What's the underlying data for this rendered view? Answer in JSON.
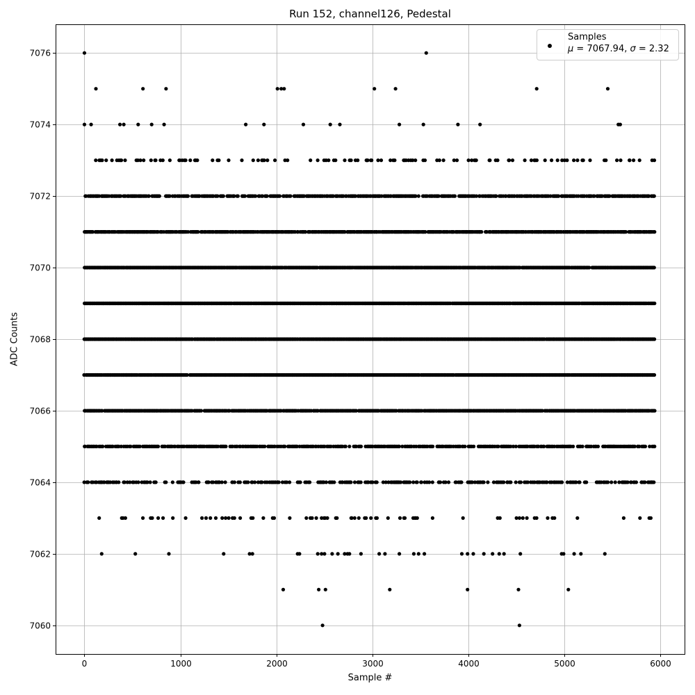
{
  "chart_data": {
    "type": "scatter",
    "title": "Run 152, channel126, Pedestal",
    "xlabel": "Sample #",
    "ylabel": "ADC Counts",
    "xlim": [
      -300,
      6250
    ],
    "ylim": [
      7059.2,
      7076.8
    ],
    "x_ticks": [
      0,
      1000,
      2000,
      3000,
      4000,
      5000,
      6000
    ],
    "y_ticks": [
      7060,
      7062,
      7064,
      7066,
      7068,
      7070,
      7072,
      7074,
      7076
    ],
    "grid": true,
    "legend": {
      "placement": "top-right",
      "label": "Samples",
      "mu_symbol": "μ",
      "sigma_symbol": "σ",
      "mu": "7067.94",
      "sigma": "2.32"
    },
    "series": [
      {
        "marker": "circle",
        "color": "#000000",
        "points": [
          [
            0,
            7076
          ],
          [
            120,
            7075
          ],
          [
            610,
            7075
          ],
          [
            850,
            7075
          ],
          [
            2010,
            7075
          ],
          [
            2050,
            7075
          ],
          [
            2080,
            7075
          ],
          [
            3020,
            7075
          ],
          [
            3240,
            7075
          ],
          [
            4710,
            7075
          ],
          [
            5450,
            7075
          ],
          [
            3560,
            7076
          ],
          [
            2480,
            7060
          ],
          [
            4530,
            7060
          ],
          [
            2070,
            7061
          ],
          [
            2440,
            7061
          ],
          [
            2510,
            7061
          ],
          [
            3180,
            7061
          ],
          [
            3990,
            7061
          ],
          [
            4520,
            7061
          ],
          [
            5040,
            7061
          ],
          [
            0,
            7074
          ],
          [
            70,
            7074
          ],
          [
            370,
            7074
          ],
          [
            410,
            7074
          ],
          [
            560,
            7074
          ],
          [
            700,
            7074
          ],
          [
            830,
            7074
          ],
          [
            1680,
            7074
          ],
          [
            1870,
            7074
          ],
          [
            2280,
            7074
          ],
          [
            2560,
            7074
          ],
          [
            2660,
            7074
          ],
          [
            3280,
            7074
          ],
          [
            3530,
            7074
          ],
          [
            3890,
            7074
          ],
          [
            4120,
            7074
          ],
          [
            5560,
            7074
          ],
          [
            5580,
            7074
          ],
          [
            180,
            7062
          ],
          [
            530,
            7062
          ],
          [
            880,
            7062
          ],
          [
            1450,
            7062
          ],
          [
            1720,
            7062
          ],
          [
            1750,
            7062
          ],
          [
            2220,
            7062
          ],
          [
            2240,
            7062
          ],
          [
            2430,
            7062
          ],
          [
            2470,
            7062
          ],
          [
            2500,
            7062
          ],
          [
            2580,
            7062
          ],
          [
            2640,
            7062
          ],
          [
            2710,
            7062
          ],
          [
            2740,
            7062
          ],
          [
            2760,
            7062
          ],
          [
            2880,
            7062
          ],
          [
            3070,
            7062
          ],
          [
            3130,
            7062
          ],
          [
            3280,
            7062
          ],
          [
            3430,
            7062
          ],
          [
            3480,
            7062
          ],
          [
            3540,
            7062
          ],
          [
            3930,
            7062
          ],
          [
            3990,
            7062
          ],
          [
            4050,
            7062
          ],
          [
            4160,
            7062
          ],
          [
            4250,
            7062
          ],
          [
            4320,
            7062
          ],
          [
            4370,
            7062
          ],
          [
            4540,
            7062
          ],
          [
            4970,
            7062
          ],
          [
            4990,
            7062
          ],
          [
            5100,
            7062
          ],
          [
            5170,
            7062
          ],
          [
            5420,
            7062
          ]
        ]
      }
    ]
  }
}
